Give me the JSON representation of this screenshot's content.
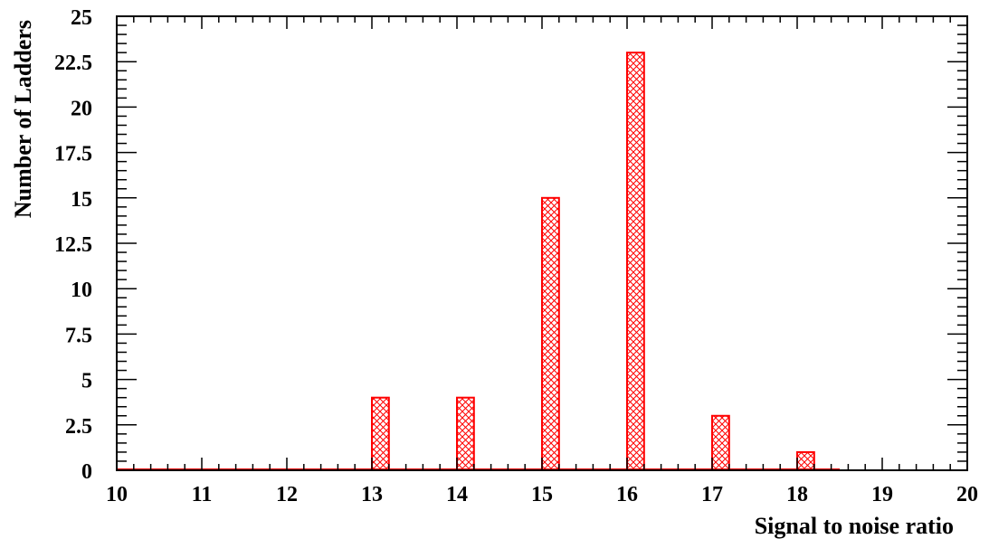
{
  "chart_data": {
    "type": "bar",
    "title": "",
    "xlabel": "Signal to noise ratio",
    "ylabel": "Number of Ladders",
    "xlim": [
      10,
      20
    ],
    "ylim": [
      0,
      25
    ],
    "x_ticks": [
      "10",
      "11",
      "12",
      "13",
      "14",
      "15",
      "16",
      "17",
      "18",
      "19",
      "20"
    ],
    "y_ticks": [
      "0",
      "2.5",
      "5",
      "7.5",
      "10",
      "12.5",
      "15",
      "17.5",
      "20",
      "22.5",
      "25"
    ],
    "bar_x": [
      13,
      14,
      15,
      16,
      17,
      18
    ],
    "values": [
      4,
      4,
      15,
      23,
      3,
      1
    ],
    "bar_width_data": 0.2,
    "baseline_line_range": [
      10,
      18.5
    ],
    "grid": false,
    "colors": {
      "bar_stroke": "#ff0000",
      "hatch": "#ff0000",
      "axis": "#000000"
    },
    "fill_style": "cross-hatch"
  }
}
